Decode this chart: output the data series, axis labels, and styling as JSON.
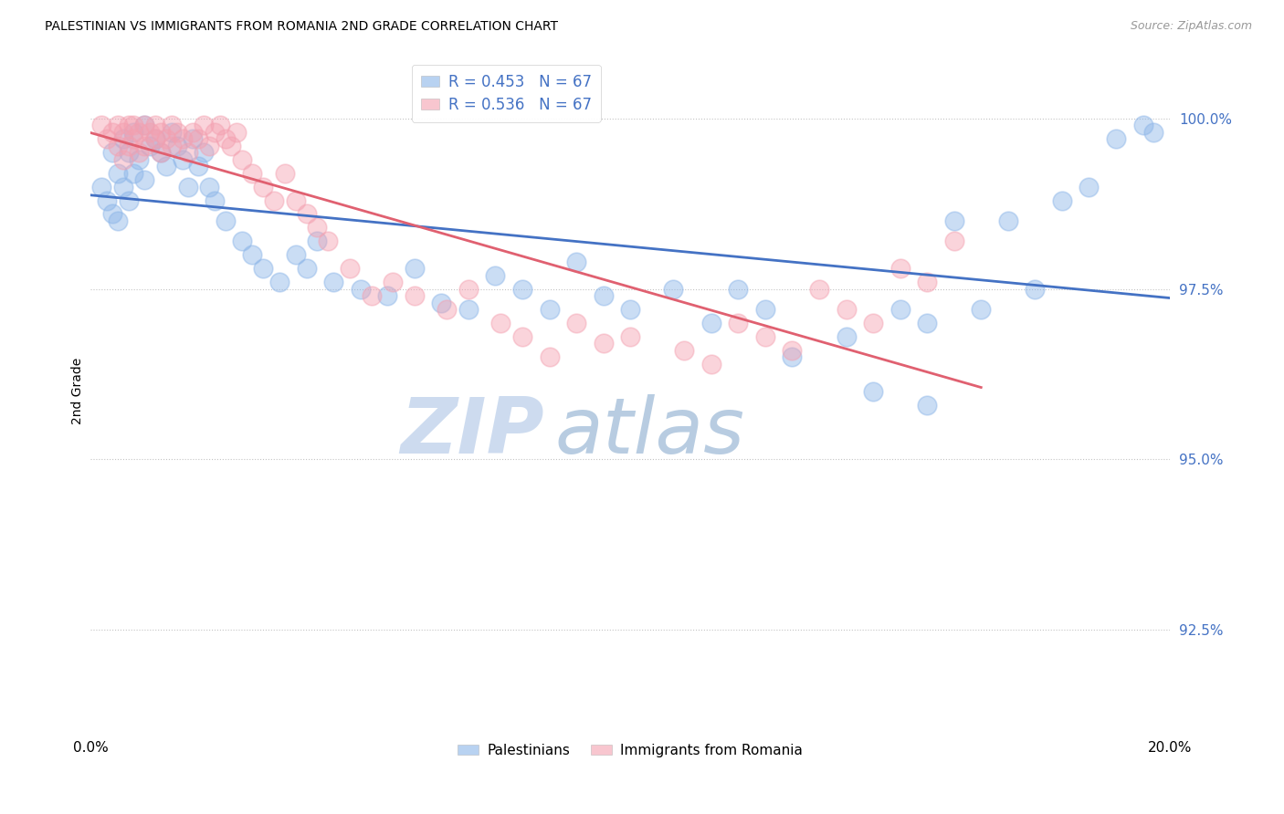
{
  "title": "PALESTINIAN VS IMMIGRANTS FROM ROMANIA 2ND GRADE CORRELATION CHART",
  "source": "Source: ZipAtlas.com",
  "ylabel": "2nd Grade",
  "y_ticks_labels": [
    "92.5%",
    "95.0%",
    "97.5%",
    "100.0%"
  ],
  "y_ticks_values": [
    0.925,
    0.95,
    0.975,
    1.0
  ],
  "xlim": [
    0.0,
    0.2
  ],
  "ylim": [
    0.91,
    1.01
  ],
  "blue_color": "#8ab4e8",
  "pink_color": "#f4a0b0",
  "blue_line_color": "#4472c4",
  "pink_line_color": "#e06070",
  "legend_blue_label": "R = 0.453   N = 67",
  "legend_pink_label": "R = 0.536   N = 67",
  "legend_palestinians": "Palestinians",
  "legend_romania": "Immigrants from Romania",
  "watermark_zip": "ZIP",
  "watermark_atlas": "atlas",
  "title_fontsize": 10.5,
  "axis_label_color": "#4472c4",
  "blue_scatter_x": [
    0.002,
    0.003,
    0.004,
    0.004,
    0.005,
    0.005,
    0.006,
    0.006,
    0.007,
    0.007,
    0.008,
    0.008,
    0.009,
    0.01,
    0.01,
    0.011,
    0.012,
    0.013,
    0.014,
    0.015,
    0.016,
    0.017,
    0.018,
    0.019,
    0.02,
    0.021,
    0.022,
    0.023,
    0.025,
    0.028,
    0.03,
    0.032,
    0.035,
    0.038,
    0.04,
    0.042,
    0.045,
    0.05,
    0.055,
    0.06,
    0.065,
    0.07,
    0.075,
    0.08,
    0.085,
    0.09,
    0.095,
    0.1,
    0.108,
    0.115,
    0.12,
    0.125,
    0.13,
    0.14,
    0.15,
    0.155,
    0.165,
    0.175,
    0.18,
    0.185,
    0.19,
    0.195,
    0.197,
    0.17,
    0.145,
    0.16,
    0.155
  ],
  "blue_scatter_y": [
    0.99,
    0.988,
    0.986,
    0.995,
    0.992,
    0.985,
    0.997,
    0.99,
    0.995,
    0.988,
    0.998,
    0.992,
    0.994,
    0.999,
    0.991,
    0.996,
    0.997,
    0.995,
    0.993,
    0.998,
    0.996,
    0.994,
    0.99,
    0.997,
    0.993,
    0.995,
    0.99,
    0.988,
    0.985,
    0.982,
    0.98,
    0.978,
    0.976,
    0.98,
    0.978,
    0.982,
    0.976,
    0.975,
    0.974,
    0.978,
    0.973,
    0.972,
    0.977,
    0.975,
    0.972,
    0.979,
    0.974,
    0.972,
    0.975,
    0.97,
    0.975,
    0.972,
    0.965,
    0.968,
    0.972,
    0.97,
    0.972,
    0.975,
    0.988,
    0.99,
    0.997,
    0.999,
    0.998,
    0.985,
    0.96,
    0.985,
    0.958
  ],
  "pink_scatter_x": [
    0.002,
    0.003,
    0.004,
    0.005,
    0.005,
    0.006,
    0.006,
    0.007,
    0.007,
    0.008,
    0.008,
    0.009,
    0.009,
    0.01,
    0.01,
    0.011,
    0.012,
    0.012,
    0.013,
    0.013,
    0.014,
    0.015,
    0.015,
    0.016,
    0.017,
    0.018,
    0.019,
    0.02,
    0.021,
    0.022,
    0.023,
    0.024,
    0.025,
    0.026,
    0.027,
    0.028,
    0.03,
    0.032,
    0.034,
    0.036,
    0.038,
    0.04,
    0.042,
    0.044,
    0.048,
    0.052,
    0.056,
    0.06,
    0.066,
    0.07,
    0.076,
    0.08,
    0.085,
    0.09,
    0.095,
    0.1,
    0.11,
    0.115,
    0.12,
    0.125,
    0.13,
    0.135,
    0.14,
    0.145,
    0.15,
    0.155,
    0.16
  ],
  "pink_scatter_y": [
    0.999,
    0.997,
    0.998,
    0.999,
    0.996,
    0.998,
    0.994,
    0.999,
    0.996,
    0.999,
    0.997,
    0.998,
    0.995,
    0.999,
    0.996,
    0.998,
    0.999,
    0.997,
    0.998,
    0.995,
    0.997,
    0.999,
    0.996,
    0.998,
    0.997,
    0.995,
    0.998,
    0.997,
    0.999,
    0.996,
    0.998,
    0.999,
    0.997,
    0.996,
    0.998,
    0.994,
    0.992,
    0.99,
    0.988,
    0.992,
    0.988,
    0.986,
    0.984,
    0.982,
    0.978,
    0.974,
    0.976,
    0.974,
    0.972,
    0.975,
    0.97,
    0.968,
    0.965,
    0.97,
    0.967,
    0.968,
    0.966,
    0.964,
    0.97,
    0.968,
    0.966,
    0.975,
    0.972,
    0.97,
    0.978,
    0.976,
    0.982
  ]
}
